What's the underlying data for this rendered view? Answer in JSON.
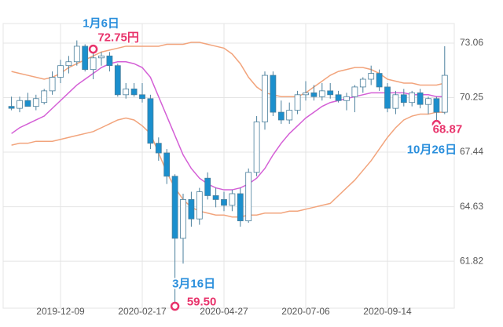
{
  "chart_data": {
    "type": "candlestick",
    "categories": [
      null,
      null,
      null,
      null,
      null,
      null,
      "2019-12-09",
      null,
      null,
      null,
      null,
      null,
      null,
      null,
      null,
      null,
      "2020-02-17",
      null,
      null,
      null,
      null,
      null,
      null,
      null,
      null,
      null,
      "2020-04-27",
      null,
      null,
      null,
      null,
      null,
      null,
      null,
      null,
      null,
      "2020-07-06",
      null,
      null,
      null,
      null,
      null,
      null,
      null,
      null,
      null,
      "2020-09-14",
      null,
      null,
      null,
      null,
      null,
      null,
      null
    ],
    "open": [
      69.8,
      69.7,
      70.1,
      69.8,
      70.0,
      70.6,
      71.3,
      71.9,
      72.1,
      72.9,
      71.7,
      72.3,
      72.4,
      71.9,
      70.4,
      70.7,
      70.4,
      70.2,
      67.9,
      67.4,
      66.2,
      63.0,
      65.0,
      64.0,
      66.1,
      65.2,
      65.0,
      64.7,
      65.3,
      63.9,
      66.4,
      69.0,
      71.4,
      69.5,
      69.1,
      69.6,
      70.4,
      70.5,
      70.3,
      70.6,
      70.4,
      70.1,
      70.3,
      70.8,
      71.2,
      71.5,
      70.8,
      69.7,
      70.4,
      70.0,
      70.5,
      69.9,
      70.2,
      69.5
    ],
    "high": [
      70.3,
      70.3,
      70.5,
      70.4,
      70.7,
      71.6,
      72.2,
      72.4,
      73.2,
      73.0,
      72.75,
      72.6,
      72.6,
      72.0,
      71.0,
      71.0,
      71.0,
      70.4,
      68.2,
      67.6,
      66.3,
      65.3,
      65.4,
      65.6,
      66.4,
      65.6,
      65.4,
      65.5,
      65.6,
      66.6,
      69.3,
      71.6,
      71.6,
      70.1,
      70.0,
      70.6,
      71.1,
      70.9,
      71.0,
      71.0,
      70.6,
      70.5,
      70.9,
      71.3,
      71.9,
      71.7,
      71.0,
      70.6,
      70.7,
      70.6,
      70.7,
      70.3,
      70.3,
      72.9
    ],
    "low": [
      69.6,
      69.5,
      69.8,
      69.6,
      69.9,
      70.4,
      71.0,
      71.5,
      71.9,
      71.6,
      71.2,
      71.9,
      71.6,
      70.3,
      70.2,
      70.3,
      70.0,
      67.6,
      67.0,
      65.8,
      59.5,
      61.7,
      63.6,
      63.7,
      65.0,
      64.6,
      64.4,
      64.4,
      63.6,
      63.8,
      66.2,
      68.6,
      69.3,
      68.9,
      68.9,
      69.4,
      70.1,
      70.1,
      70.1,
      70.2,
      70.0,
      69.6,
      69.5,
      70.5,
      70.9,
      70.6,
      69.5,
      69.4,
      69.8,
      69.8,
      69.7,
      69.4,
      68.87,
      69.4
    ],
    "close": [
      69.7,
      70.1,
      69.8,
      70.2,
      70.6,
      71.3,
      71.9,
      72.1,
      72.9,
      71.7,
      72.3,
      72.4,
      71.9,
      70.4,
      70.7,
      70.4,
      70.2,
      67.9,
      67.4,
      66.2,
      63.0,
      65.0,
      64.0,
      65.4,
      65.2,
      65.0,
      64.7,
      65.3,
      63.9,
      66.4,
      69.0,
      71.4,
      69.5,
      69.1,
      69.6,
      70.4,
      70.5,
      70.3,
      70.6,
      70.4,
      70.1,
      70.3,
      70.8,
      71.2,
      71.5,
      70.8,
      69.7,
      70.4,
      70.0,
      70.5,
      69.9,
      70.2,
      69.5,
      71.4
    ],
    "up_color": "#ffffff",
    "down_color": "#1b8fcd",
    "edge_color": "#4a7f9c",
    "series": [
      {
        "color": "#f2a47c",
        "values": [
          71.6,
          71.5,
          71.4,
          71.3,
          71.2,
          71.3,
          71.5,
          71.8,
          72.0,
          72.2,
          72.4,
          72.6,
          72.7,
          72.8,
          72.9,
          72.9,
          72.9,
          72.9,
          72.9,
          73.0,
          73.0,
          73.0,
          73.1,
          73.1,
          73.0,
          72.9,
          72.8,
          72.5,
          72.0,
          71.3,
          70.8,
          70.5,
          70.4,
          70.3,
          70.3,
          70.3,
          70.5,
          70.8,
          71.1,
          71.4,
          71.6,
          71.7,
          71.8,
          71.8,
          71.7,
          71.5,
          71.2,
          71.1,
          71.0,
          71.0,
          70.9,
          70.9,
          70.9,
          71.0
        ]
      },
      {
        "color": "#d45fd6",
        "values": [
          68.4,
          68.7,
          68.9,
          69.1,
          69.3,
          69.7,
          70.1,
          70.5,
          70.9,
          71.2,
          71.5,
          71.8,
          72.0,
          72.1,
          72.1,
          72.0,
          71.8,
          71.3,
          70.3,
          69.3,
          68.3,
          67.3,
          66.6,
          66.1,
          65.8,
          65.6,
          65.5,
          65.5,
          65.6,
          65.8,
          66.1,
          66.6,
          67.3,
          67.9,
          68.4,
          68.8,
          69.2,
          69.5,
          69.8,
          70.0,
          70.1,
          70.2,
          70.3,
          70.4,
          70.5,
          70.5,
          70.5,
          70.5,
          70.5,
          70.4,
          70.4,
          70.4,
          70.3,
          70.3
        ]
      },
      {
        "color": "#f2a47c",
        "values": [
          67.8,
          67.9,
          67.9,
          68.0,
          68.0,
          68.0,
          68.1,
          68.2,
          68.3,
          68.4,
          68.5,
          68.7,
          68.9,
          69.1,
          69.2,
          69.1,
          68.8,
          68.4,
          67.4,
          66.4,
          65.6,
          65.0,
          64.6,
          64.4,
          64.3,
          64.2,
          64.2,
          64.1,
          64.1,
          64.2,
          64.2,
          64.3,
          64.3,
          64.3,
          64.4,
          64.4,
          64.5,
          64.6,
          64.7,
          64.8,
          65.2,
          65.6,
          66.0,
          66.5,
          67.0,
          67.6,
          68.2,
          68.7,
          69.1,
          69.3,
          69.4,
          69.4,
          69.5,
          69.5
        ]
      }
    ],
    "annotations": [
      {
        "date": "1月6日",
        "value": 72.75,
        "value_label": "72.75円"
      },
      {
        "date": "3月16日",
        "value": 59.5,
        "value_label": "59.50"
      },
      {
        "date": "10月26日",
        "value": 68.87,
        "value_label": "68.87"
      }
    ],
    "annotation_date_color": "#2b8fdc",
    "annotation_value_color": "#e8336b",
    "ylim": [
      59.4,
      74.07
    ],
    "yticks": [
      {
        "value": 61.82,
        "label": "61.82"
      },
      {
        "value": 64.63,
        "label": "64.63"
      },
      {
        "value": 67.44,
        "label": "67.44"
      },
      {
        "value": 70.25,
        "label": "70.25"
      },
      {
        "value": 73.06,
        "label": "73.06"
      }
    ],
    "grid": true
  }
}
